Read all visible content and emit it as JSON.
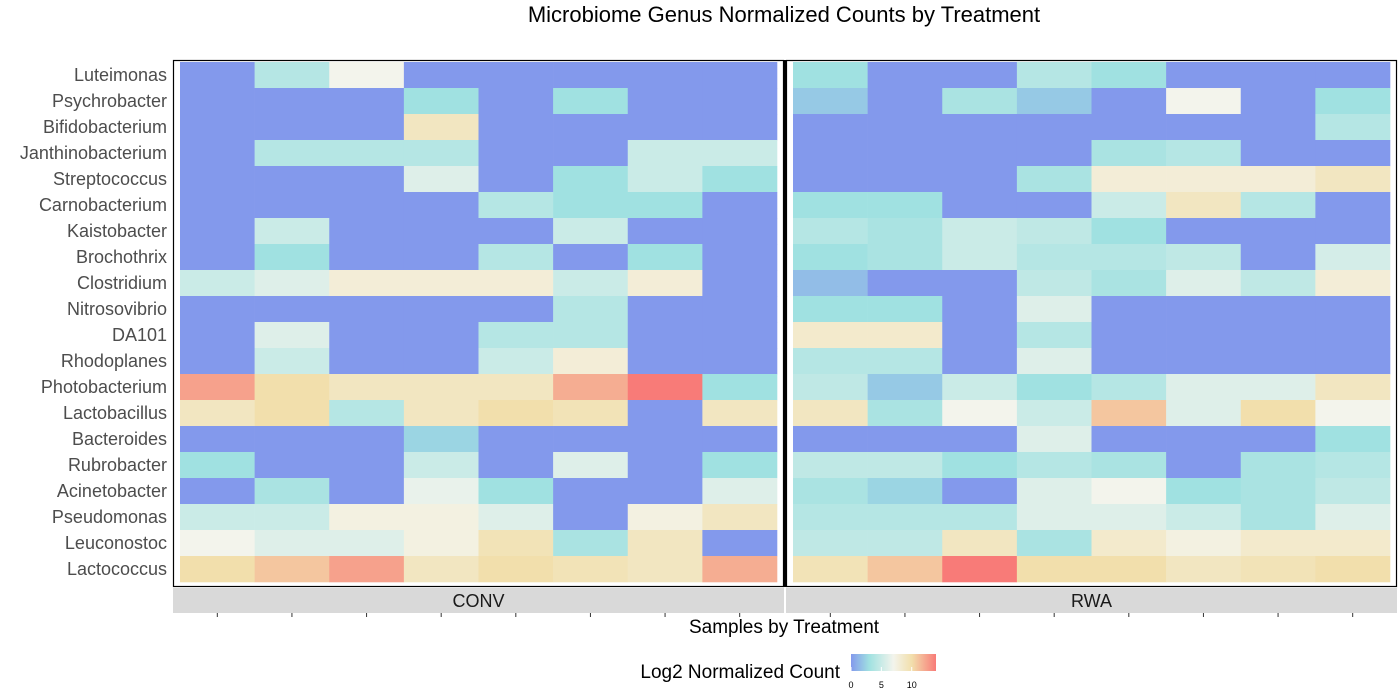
{
  "chart_data": {
    "type": "heatmap",
    "title": "Microbiome Genus Normalized Counts by Treatment",
    "xlabel": "Samples by Treatment",
    "ylabel": "",
    "rows": [
      "Luteimonas",
      "Psychrobacter",
      "Bifidobacterium",
      "Janthinobacterium",
      "Streptococcus",
      "Carnobacterium",
      "Kaistobacter",
      "Brochothrix",
      "Clostridium",
      "Nitrosovibrio",
      "DA101",
      "Rhodoplanes",
      "Photobacterium",
      "Lactobacillus",
      "Bacteroides",
      "Rubrobacter",
      "Acinetobacter",
      "Pseudomonas",
      "Leuconostoc",
      "Lactococcus"
    ],
    "facets": [
      {
        "name": "CONV",
        "values": [
          [
            0,
            4,
            7,
            0,
            0,
            0,
            0,
            0
          ],
          [
            0,
            0,
            0,
            3,
            0,
            3,
            0,
            0
          ],
          [
            0,
            0,
            0,
            9,
            0,
            0,
            0,
            0
          ],
          [
            0,
            4,
            4,
            4,
            0,
            0,
            5,
            5
          ],
          [
            0,
            0,
            0,
            6,
            0,
            3,
            5,
            3
          ],
          [
            0,
            0,
            0,
            0,
            4,
            3,
            3,
            0
          ],
          [
            0,
            5,
            0,
            0,
            0,
            5,
            0,
            0
          ],
          [
            0,
            3,
            0,
            0,
            4,
            0,
            3,
            0
          ],
          [
            5,
            6,
            8,
            8,
            8,
            5,
            8,
            0
          ],
          [
            0,
            0,
            0,
            0,
            0,
            4,
            0,
            0
          ],
          [
            0,
            6,
            0,
            0,
            4,
            4,
            0,
            0
          ],
          [
            0,
            5,
            0,
            0,
            5,
            8,
            0,
            0
          ],
          [
            12.5,
            10,
            9,
            9,
            9,
            12,
            14,
            3
          ],
          [
            9,
            10,
            4,
            9,
            10,
            9.5,
            0,
            9
          ],
          [
            0,
            0,
            0,
            2.5,
            0,
            0,
            0,
            0
          ],
          [
            3,
            0,
            0,
            5,
            0,
            6,
            0,
            3
          ],
          [
            0,
            3.5,
            0,
            6.5,
            3,
            0,
            0,
            6
          ],
          [
            5,
            5,
            7.5,
            7.5,
            6,
            0,
            7.5,
            9
          ],
          [
            7,
            6,
            6,
            7.5,
            9.5,
            3.5,
            9,
            0
          ],
          [
            10,
            11,
            12.5,
            9,
            10,
            9.5,
            9,
            12
          ]
        ]
      },
      {
        "name": "RWA",
        "values": [
          [
            3,
            0,
            0,
            4,
            3,
            0,
            0,
            0
          ],
          [
            2,
            0,
            3.5,
            2,
            0,
            7,
            0,
            3
          ],
          [
            0,
            0,
            0,
            0,
            0,
            0,
            0,
            4
          ],
          [
            0,
            0,
            0,
            0,
            3.5,
            4,
            0,
            0
          ],
          [
            0,
            0,
            0,
            3.5,
            8,
            8,
            8,
            9
          ],
          [
            3,
            3,
            0,
            0,
            5,
            9,
            4,
            0
          ],
          [
            4,
            3.5,
            5,
            4.5,
            3,
            0,
            0,
            0
          ],
          [
            3,
            3.5,
            5,
            4,
            4,
            4.5,
            0,
            5.5
          ],
          [
            1.5,
            0,
            0,
            4.5,
            3.5,
            6,
            4.5,
            8
          ],
          [
            3,
            3,
            0,
            6,
            0,
            0,
            0,
            0
          ],
          [
            8.5,
            8.5,
            0,
            4,
            0,
            0,
            0,
            0
          ],
          [
            4,
            4,
            0,
            6,
            0,
            0,
            0,
            0
          ],
          [
            4.5,
            2,
            5,
            3,
            4,
            6,
            6,
            9
          ],
          [
            9,
            3.5,
            7,
            5,
            11,
            6,
            10,
            7
          ],
          [
            0,
            0,
            0,
            6,
            0,
            0,
            0,
            3
          ],
          [
            4.5,
            4.5,
            3,
            4,
            3.5,
            0,
            3.5,
            4
          ],
          [
            3.5,
            2.5,
            0,
            6,
            7,
            3,
            3.5,
            4.5
          ],
          [
            4,
            4,
            4,
            6,
            6,
            5,
            3.5,
            6
          ],
          [
            4.5,
            4.5,
            9,
            3.5,
            8.5,
            7.5,
            8.5,
            8.5
          ],
          [
            9.5,
            11,
            14,
            10,
            10,
            9,
            9.5,
            10
          ]
        ]
      }
    ],
    "color_scale": {
      "title": "Log2 Normalized Count",
      "min": 0,
      "max": 14,
      "ticks": [
        "0",
        "5",
        "10"
      ],
      "stops": [
        {
          "value": 0,
          "color": "#8399ec"
        },
        {
          "value": 3,
          "color": "#a0e1e1"
        },
        {
          "value": 7,
          "color": "#f3f4ec"
        },
        {
          "value": 10,
          "color": "#f2dfac"
        },
        {
          "value": 14,
          "color": "#f87b78"
        }
      ]
    }
  }
}
